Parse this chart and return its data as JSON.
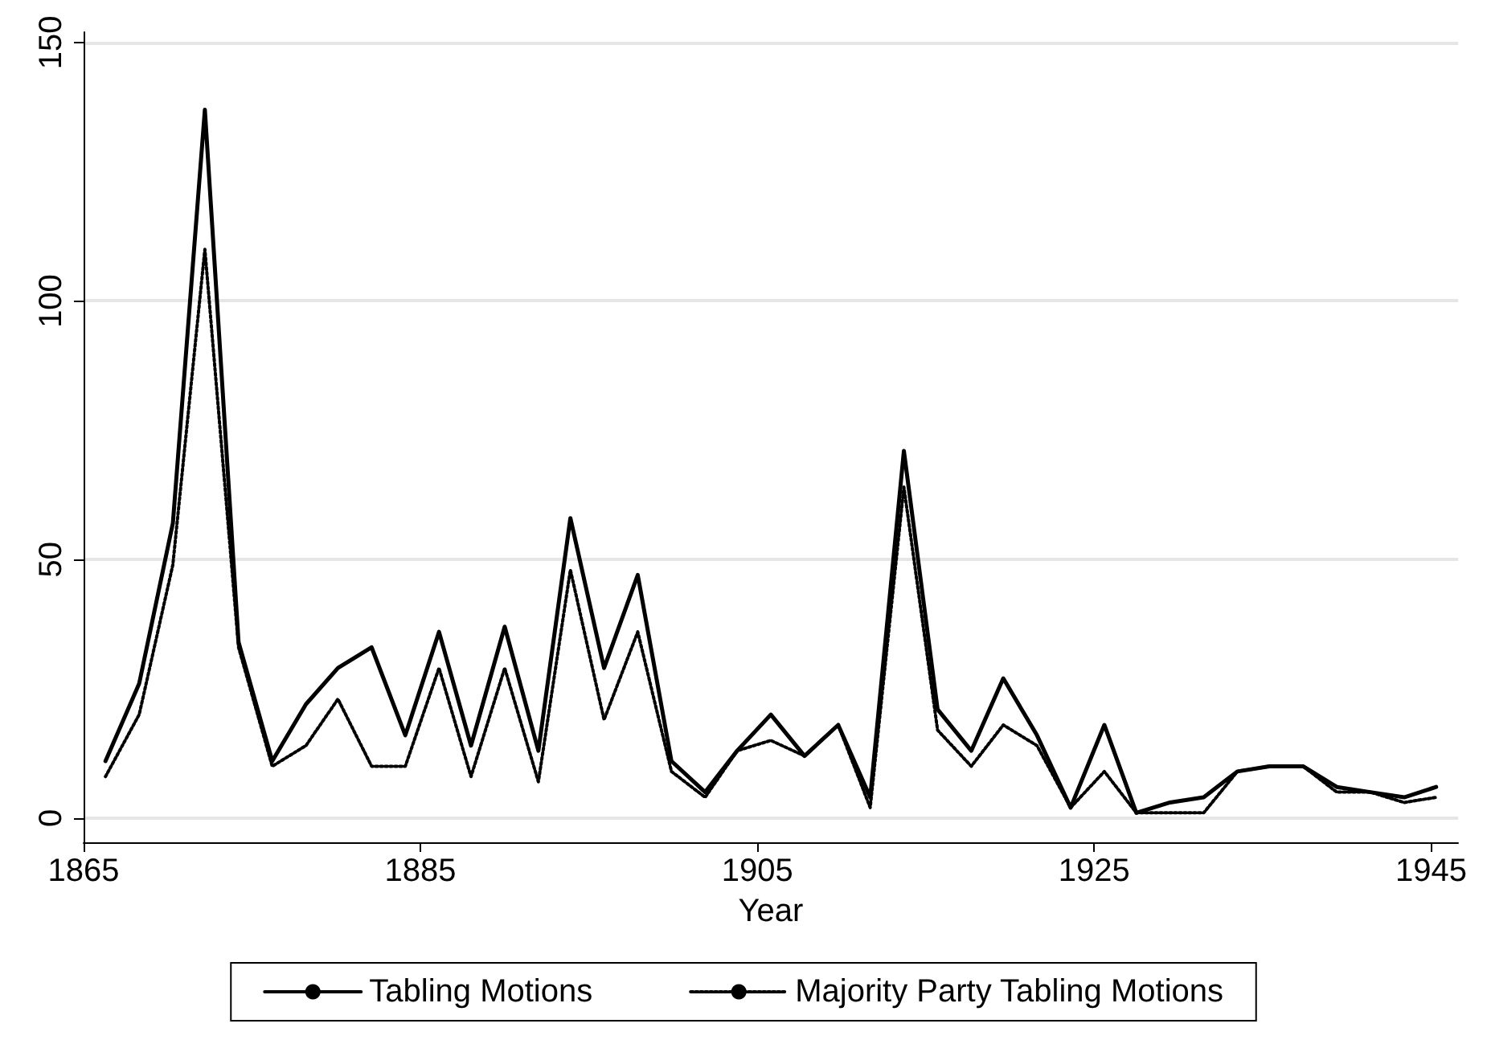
{
  "chart_data": {
    "type": "line",
    "xlabel": "Year",
    "x": [
      1866.3,
      1868.3,
      1870.3,
      1872.2,
      1874.2,
      1876.2,
      1878.2,
      1880.1,
      1882.1,
      1884.1,
      1886.1,
      1888.0,
      1890.0,
      1892.0,
      1893.9,
      1895.9,
      1897.9,
      1899.9,
      1901.9,
      1903.8,
      1905.8,
      1907.8,
      1909.8,
      1911.7,
      1913.7,
      1915.7,
      1917.7,
      1919.6,
      1921.6,
      1923.6,
      1925.6,
      1927.5,
      1929.5,
      1931.5,
      1933.5,
      1935.4,
      1937.4,
      1939.4,
      1941.4,
      1943.4,
      1945.3
    ],
    "series": [
      {
        "name": "Tabling Motions",
        "color": "#000000",
        "line_style": "solid",
        "values": [
          11,
          26,
          57,
          137,
          34,
          11,
          22,
          29,
          33,
          16,
          36,
          14,
          37,
          13,
          58,
          29,
          47,
          11,
          5,
          13,
          20,
          12,
          18,
          4,
          71,
          21,
          13,
          27,
          16,
          2,
          18,
          1,
          3,
          4,
          9,
          10,
          10,
          6,
          5,
          4,
          6
        ]
      },
      {
        "name": "Majority Party Tabling Motions",
        "color": "#000000",
        "line_style": "dotted",
        "values": [
          8,
          20,
          49,
          110,
          33,
          10,
          14,
          23,
          10,
          10,
          29,
          8,
          29,
          7,
          48,
          19,
          36,
          9,
          4,
          13,
          15,
          12,
          18,
          2,
          64,
          17,
          10,
          18,
          14,
          2,
          9,
          1,
          1,
          1,
          9,
          10,
          10,
          5,
          5,
          3,
          4
        ]
      }
    ],
    "xlim": [
      1865,
      1946.6
    ],
    "xticks": [
      1865,
      1885,
      1905,
      1925,
      1945
    ],
    "ylim": [
      -4.7,
      152
    ],
    "yticks": [
      0,
      50,
      100,
      150
    ],
    "grid": "y",
    "legend": "bottom",
    "marker": "none"
  }
}
